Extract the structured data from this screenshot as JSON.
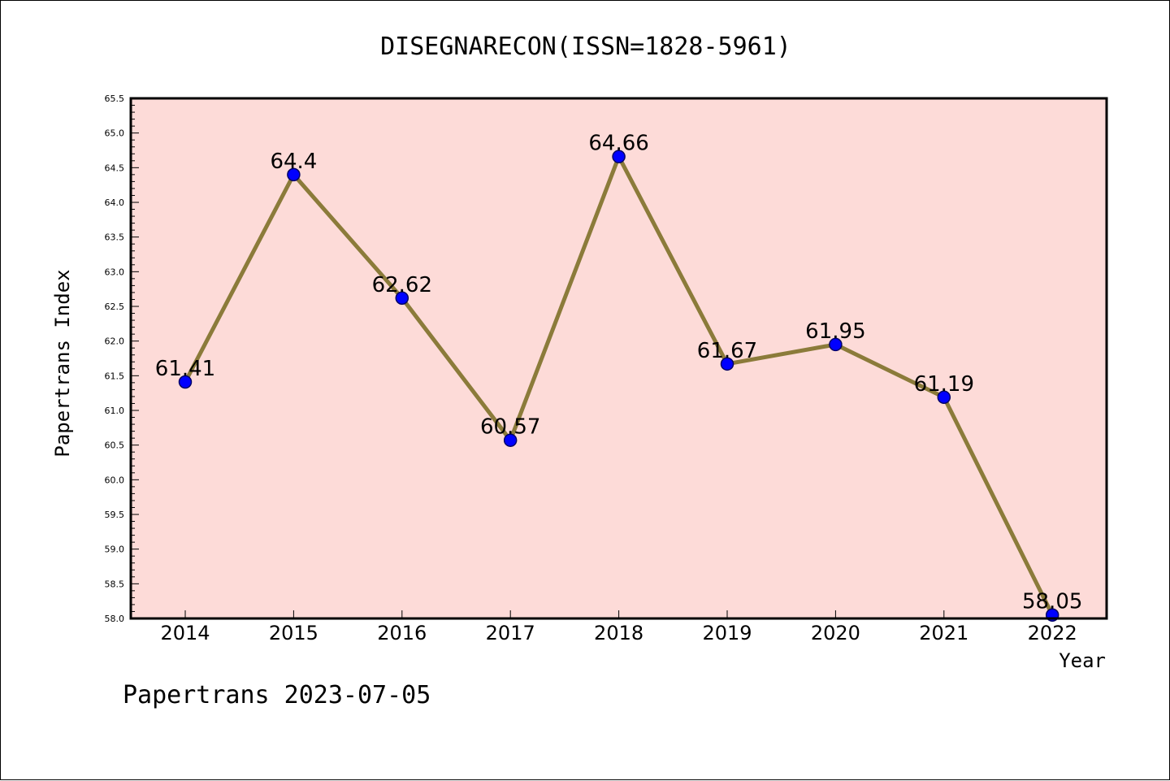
{
  "chart_data": {
    "type": "line",
    "title": "DISEGNARECON(ISSN=1828-5961)",
    "xlabel": "Year",
    "ylabel": "Papertrans Index",
    "categories": [
      "2014",
      "2015",
      "2016",
      "2017",
      "2018",
      "2019",
      "2020",
      "2021",
      "2022"
    ],
    "series": [
      {
        "values": [
          61.41,
          64.4,
          62.62,
          60.57,
          64.66,
          61.67,
          61.95,
          61.19,
          58.05
        ],
        "labels": [
          "61.41",
          "64.4",
          "62.62",
          "60.57",
          "64.66",
          "61.67",
          "61.95",
          "61.19",
          "58.05"
        ]
      }
    ],
    "ylim": [
      58.0,
      65.5
    ],
    "yticks": [
      "58.0",
      "58.5",
      "59.0",
      "59.5",
      "60.0",
      "60.5",
      "61.0",
      "61.5",
      "62.0",
      "62.5",
      "63.0",
      "63.5",
      "64.0",
      "64.5",
      "65.0",
      "65.5"
    ],
    "yticks_values": [
      58.0,
      58.5,
      59.0,
      59.5,
      60.0,
      60.5,
      61.0,
      61.5,
      62.0,
      62.5,
      63.0,
      63.5,
      64.0,
      64.5,
      65.0,
      65.5
    ],
    "grid": false,
    "legend": "none",
    "colors": {
      "plot_background": "#fddbd8",
      "line": "#8b7b3a",
      "marker": "#0000ff",
      "marker_edge": "#000066"
    }
  },
  "footer": "Papertrans 2023-07-05"
}
